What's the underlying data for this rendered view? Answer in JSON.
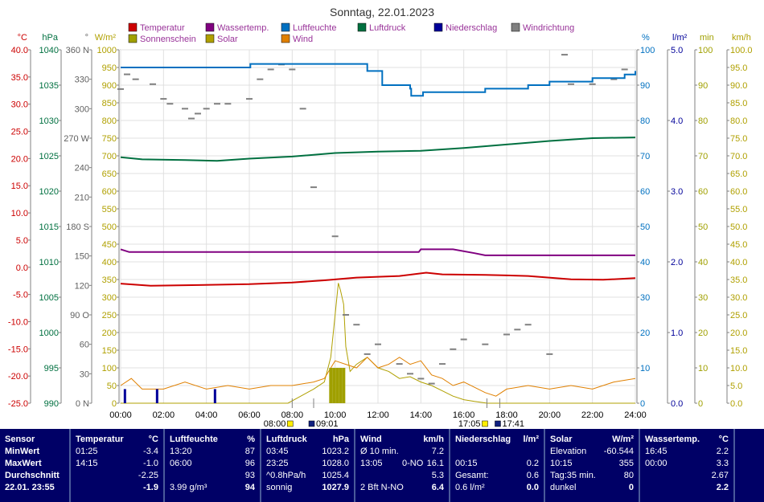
{
  "chart_data": {
    "type": "line",
    "title": "Sonntag, 22.01.2023",
    "legend": [
      {
        "name": "Temperatur",
        "color": "#cc0000"
      },
      {
        "name": "Wassertemp.",
        "color": "#800080"
      },
      {
        "name": "Luftfeuchte",
        "color": "#0070c0"
      },
      {
        "name": "Luftdruck",
        "color": "#007040"
      },
      {
        "name": "Niederschlag",
        "color": "#000099"
      },
      {
        "name": "Windrichtung",
        "color": "#808080"
      },
      {
        "name": "Sonnenschein",
        "color": "#a0a000"
      },
      {
        "name": "Solar",
        "color": "#b0a000"
      },
      {
        "name": "Wind",
        "color": "#e08000"
      }
    ],
    "axes_left": [
      {
        "unit": "°C",
        "color": "#cc0000",
        "min": -25,
        "max": 40,
        "ticks": [
          "40.0",
          "35.0",
          "30.0",
          "25.0",
          "20.0",
          "15.0",
          "10.0",
          "5.0",
          "0.0",
          "-5.0",
          "-10.0",
          "-15.0",
          "-20.0",
          "-25.0"
        ]
      },
      {
        "unit": "hPa",
        "color": "#007040",
        "min": 990,
        "max": 1040,
        "ticks": [
          "1040",
          "1035",
          "1030",
          "1025",
          "1020",
          "1015",
          "1010",
          "1005",
          "1000",
          "995",
          "990"
        ]
      },
      {
        "unit": "°",
        "color": "#606060",
        "min": 0,
        "max": 360,
        "ticks": [
          "360 N",
          "330",
          "300",
          "270 W",
          "240",
          "210",
          "180 S",
          "150",
          "120",
          "90 O",
          "60",
          "30",
          "0 N"
        ]
      },
      {
        "unit": "W/m²",
        "color": "#b0a000",
        "min": 0,
        "max": 1000,
        "ticks": [
          "1000",
          "950",
          "900",
          "850",
          "800",
          "750",
          "700",
          "650",
          "600",
          "550",
          "500",
          "450",
          "400",
          "350",
          "300",
          "250",
          "200",
          "150",
          "100",
          "50",
          "0"
        ]
      }
    ],
    "axes_right": [
      {
        "unit": "%",
        "color": "#0070c0",
        "min": 0,
        "max": 100,
        "ticks": [
          "100",
          "90",
          "80",
          "70",
          "60",
          "50",
          "40",
          "30",
          "20",
          "10",
          "0"
        ]
      },
      {
        "unit": "l/m²",
        "color": "#000099",
        "min": 0,
        "max": 5,
        "ticks": [
          "5.0",
          "4.0",
          "3.0",
          "2.0",
          "1.0",
          "0.0"
        ]
      },
      {
        "unit": "min",
        "color": "#a0a000",
        "min": 0,
        "max": 100,
        "ticks": [
          "100",
          "90",
          "80",
          "70",
          "60",
          "50",
          "40",
          "30",
          "20",
          "10",
          "0"
        ]
      },
      {
        "unit": "km/h",
        "color": "#b0a000",
        "min": 0,
        "max": 100,
        "ticks": [
          "100.0",
          "95.0",
          "90.0",
          "85.0",
          "80.0",
          "75.0",
          "70.0",
          "65.0",
          "60.0",
          "55.0",
          "50.0",
          "45.0",
          "40.0",
          "35.0",
          "30.0",
          "25.0",
          "20.0",
          "15.0",
          "10.0",
          "5.0",
          "0.0"
        ]
      }
    ],
    "x_ticks": [
      "00:00",
      "02:00",
      "04:00",
      "06:00",
      "08:00",
      "10:00",
      "12:00",
      "14:00",
      "16:00",
      "18:00",
      "20:00",
      "22:00",
      "24:00"
    ],
    "sun_markers": [
      {
        "label": "08:00",
        "time": 8.0
      },
      {
        "label": "09:01",
        "time": 9.0
      },
      {
        "label": "17:05",
        "time": 17.08
      },
      {
        "label": "17:41",
        "time": 17.68
      }
    ],
    "grid": true,
    "series": {
      "Temperatur": [
        [
          0,
          -3.0
        ],
        [
          1.4,
          -3.4
        ],
        [
          3,
          -3.3
        ],
        [
          6,
          -3.1
        ],
        [
          8,
          -2.8
        ],
        [
          9.5,
          -2.4
        ],
        [
          11,
          -1.9
        ],
        [
          13,
          -1.6
        ],
        [
          14.25,
          -1.0
        ],
        [
          15,
          -1.3
        ],
        [
          17,
          -1.4
        ],
        [
          19,
          -1.6
        ],
        [
          21,
          -2.2
        ],
        [
          22.5,
          -2.3
        ],
        [
          24,
          -2.0
        ]
      ],
      "Wassertemp.": [
        [
          0,
          3.3
        ],
        [
          0.4,
          2.8
        ],
        [
          7,
          2.8
        ],
        [
          12,
          2.8
        ],
        [
          13.9,
          2.8
        ],
        [
          14,
          3.3
        ],
        [
          15.5,
          3.3
        ],
        [
          16.5,
          2.6
        ],
        [
          17,
          2.2
        ],
        [
          24,
          2.2
        ]
      ],
      "Luftfeuchte": [
        [
          0,
          95
        ],
        [
          6,
          95
        ],
        [
          6.05,
          96
        ],
        [
          11,
          96
        ],
        [
          11.5,
          94
        ],
        [
          12.2,
          90
        ],
        [
          13.5,
          89
        ],
        [
          13.55,
          87
        ],
        [
          14,
          87
        ],
        [
          14.1,
          88
        ],
        [
          16,
          88
        ],
        [
          17,
          89
        ],
        [
          19,
          90
        ],
        [
          20,
          91
        ],
        [
          22,
          92
        ],
        [
          23.5,
          93
        ],
        [
          24,
          94
        ]
      ],
      "Luftdruck": [
        [
          0,
          1024.8
        ],
        [
          1,
          1024.5
        ],
        [
          3,
          1024.4
        ],
        [
          4.5,
          1024.3
        ],
        [
          6,
          1024.6
        ],
        [
          8,
          1024.9
        ],
        [
          10,
          1025.4
        ],
        [
          12,
          1025.6
        ],
        [
          14,
          1025.7
        ],
        [
          16,
          1026.1
        ],
        [
          18,
          1026.6
        ],
        [
          20,
          1027.1
        ],
        [
          22,
          1027.5
        ],
        [
          24,
          1027.6
        ]
      ],
      "Niederschlag": [
        [
          0.2,
          0.2
        ],
        [
          1.7,
          0.2
        ],
        [
          4.4,
          0.2
        ]
      ],
      "Sonnenschein": [
        [
          9.8,
          10
        ],
        [
          9.95,
          10
        ],
        [
          10.1,
          10
        ],
        [
          10.25,
          10
        ],
        [
          10.4,
          10
        ]
      ],
      "Solar": [
        [
          0,
          0
        ],
        [
          7.8,
          0
        ],
        [
          8.4,
          20
        ],
        [
          9,
          40
        ],
        [
          9.5,
          60
        ],
        [
          9.8,
          130
        ],
        [
          10,
          250
        ],
        [
          10.15,
          340
        ],
        [
          10.25,
          320
        ],
        [
          10.4,
          280
        ],
        [
          10.5,
          160
        ],
        [
          10.7,
          90
        ],
        [
          11,
          110
        ],
        [
          11.5,
          130
        ],
        [
          12,
          100
        ],
        [
          12.5,
          90
        ],
        [
          13,
          70
        ],
        [
          13.5,
          75
        ],
        [
          14,
          60
        ],
        [
          14.5,
          50
        ],
        [
          15,
          35
        ],
        [
          15.5,
          20
        ],
        [
          16,
          10
        ],
        [
          16.5,
          5
        ],
        [
          17.1,
          0
        ],
        [
          24,
          0
        ]
      ],
      "Wind": [
        [
          0,
          5
        ],
        [
          0.5,
          7
        ],
        [
          1,
          4
        ],
        [
          2,
          4
        ],
        [
          3,
          6
        ],
        [
          4,
          4
        ],
        [
          5,
          5
        ],
        [
          6,
          4
        ],
        [
          7,
          5
        ],
        [
          8,
          5
        ],
        [
          9,
          6
        ],
        [
          9.5,
          7
        ],
        [
          10,
          12
        ],
        [
          10.5,
          11
        ],
        [
          11,
          10
        ],
        [
          11.5,
          13
        ],
        [
          12,
          10
        ],
        [
          12.5,
          11
        ],
        [
          13,
          13
        ],
        [
          13.5,
          11
        ],
        [
          14,
          12
        ],
        [
          14.5,
          8
        ],
        [
          15,
          7
        ],
        [
          15.5,
          5
        ],
        [
          16,
          6
        ],
        [
          17,
          3
        ],
        [
          17.5,
          2
        ],
        [
          18,
          4
        ],
        [
          19,
          5
        ],
        [
          20,
          4
        ],
        [
          21,
          5
        ],
        [
          22,
          4
        ],
        [
          23,
          6
        ],
        [
          24,
          7
        ]
      ],
      "Windrichtung": [
        [
          0,
          320
        ],
        [
          0.3,
          335
        ],
        [
          0.7,
          330
        ],
        [
          1.5,
          325
        ],
        [
          2,
          310
        ],
        [
          2.3,
          305
        ],
        [
          3,
          300
        ],
        [
          3.3,
          290
        ],
        [
          3.6,
          295
        ],
        [
          4,
          300
        ],
        [
          4.5,
          305
        ],
        [
          5,
          305
        ],
        [
          6,
          310
        ],
        [
          6.5,
          330
        ],
        [
          7,
          340
        ],
        [
          7.5,
          345
        ],
        [
          8,
          340
        ],
        [
          8.5,
          300
        ],
        [
          9,
          220
        ],
        [
          10,
          170
        ],
        [
          10.5,
          90
        ],
        [
          11,
          80
        ],
        [
          11.5,
          50
        ],
        [
          12,
          60
        ],
        [
          13,
          40
        ],
        [
          13.5,
          30
        ],
        [
          14,
          25
        ],
        [
          14.5,
          20
        ],
        [
          15,
          40
        ],
        [
          15.5,
          55
        ],
        [
          16,
          65
        ],
        [
          17,
          60
        ],
        [
          18,
          70
        ],
        [
          18.5,
          75
        ],
        [
          19,
          80
        ],
        [
          20,
          50
        ],
        [
          20.7,
          355
        ],
        [
          21,
          325
        ],
        [
          22,
          325
        ],
        [
          23,
          330
        ],
        [
          23.5,
          340
        ]
      ]
    }
  },
  "stats": {
    "sensor": {
      "title": "Sensor",
      "rows": [
        "MinWert",
        "MaxWert",
        "Durchschnitt",
        "22.01. 23:55"
      ]
    },
    "temperatur": {
      "title": "Temperatur",
      "unit": "°C",
      "rows": [
        [
          "01:25",
          "",
          "-3.4"
        ],
        [
          "14:15",
          "",
          "-1.0"
        ],
        [
          "",
          "",
          "-2.25"
        ],
        [
          "",
          "",
          "-1.9"
        ]
      ]
    },
    "luftfeuchte": {
      "title": "Luftfeuchte",
      "unit": "%",
      "rows": [
        [
          "13:20",
          "",
          "87"
        ],
        [
          "06:00",
          "",
          "96"
        ],
        [
          "",
          "",
          "93"
        ],
        [
          "3.99 g/m³",
          "",
          "94"
        ]
      ]
    },
    "luftdruck": {
      "title": "Luftdruck",
      "unit": "hPa",
      "rows": [
        [
          "03:45",
          "",
          "1023.2"
        ],
        [
          "23:25",
          "",
          "1028.0"
        ],
        [
          "^0.8hPa/h",
          "",
          "1025.4"
        ],
        [
          "sonnig",
          "",
          "1027.9"
        ]
      ]
    },
    "wind": {
      "title": "Wind",
      "unit": "km/h",
      "rows": [
        [
          "Ø 10 min.",
          "",
          "7.2"
        ],
        [
          "13:05",
          "0-NO",
          "16.1"
        ],
        [
          "",
          "",
          "5.3"
        ],
        [
          "2 Bft N-NO",
          "",
          "6.4"
        ]
      ]
    },
    "niederschlag": {
      "title": "Niederschlag",
      "unit": "l/m²",
      "rows": [
        [
          "",
          "",
          ""
        ],
        [
          "00:15",
          "",
          "0.2"
        ],
        [
          "Gesamt:",
          "",
          "0.6"
        ],
        [
          "0.6 l/m²",
          "",
          "0.0"
        ]
      ]
    },
    "solar": {
      "title": "Solar",
      "unit": "W/m²",
      "rows": [
        [
          "Elevation",
          "",
          "-60.544"
        ],
        [
          "10:15",
          "",
          "355"
        ],
        [
          "Tag:35 min.",
          "",
          "80"
        ],
        [
          "dunkel",
          "",
          "0"
        ]
      ]
    },
    "wassertemp": {
      "title": "Wassertemp.",
      "unit": "°C",
      "rows": [
        [
          "16:45",
          "",
          "2.2"
        ],
        [
          "00:00",
          "",
          "3.3"
        ],
        [
          "",
          "",
          "2.67"
        ],
        [
          "",
          "",
          "2.2"
        ]
      ]
    }
  }
}
